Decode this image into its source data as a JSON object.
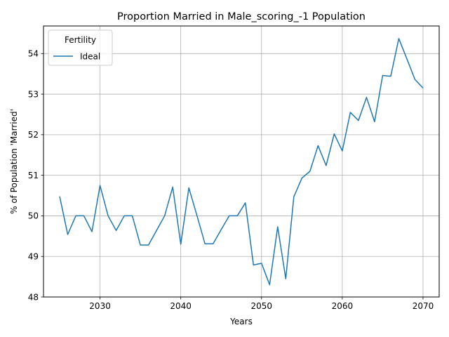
{
  "chart_data": {
    "type": "line",
    "title": "Proportion Married in Male_scoring_-1 Population",
    "xlabel": "Years",
    "ylabel": "% of Population 'Married'",
    "xlim": [
      2023,
      2072
    ],
    "ylim": [
      48,
      54.68
    ],
    "xticks": [
      2030,
      2040,
      2050,
      2060,
      2070
    ],
    "yticks": [
      48,
      49,
      50,
      51,
      52,
      53,
      54
    ],
    "grid": true,
    "legend": {
      "title": "Fertility",
      "placement": "upper-left"
    },
    "series": [
      {
        "name": "Ideal",
        "color": "#1f77b4",
        "x": [
          2025,
          2026,
          2027,
          2028,
          2029,
          2030,
          2031,
          2032,
          2033,
          2034,
          2035,
          2036,
          2037,
          2038,
          2039,
          2040,
          2041,
          2042,
          2043,
          2044,
          2045,
          2046,
          2047,
          2048,
          2049,
          2050,
          2051,
          2052,
          2053,
          2054,
          2055,
          2056,
          2057,
          2058,
          2059,
          2060,
          2061,
          2062,
          2063,
          2064,
          2065,
          2066,
          2067,
          2068,
          2069,
          2070
        ],
        "y": [
          50.48,
          49.54,
          50.0,
          50.0,
          49.61,
          50.75,
          50.0,
          49.64,
          50.0,
          50.0,
          49.28,
          49.28,
          49.64,
          50.0,
          50.71,
          49.3,
          50.69,
          50.01,
          49.31,
          49.31,
          49.66,
          50.0,
          50.0,
          50.32,
          48.79,
          48.83,
          48.3,
          49.73,
          48.45,
          50.47,
          50.93,
          51.1,
          51.73,
          51.24,
          52.02,
          51.6,
          52.55,
          52.35,
          52.92,
          52.32,
          53.46,
          53.44,
          54.37,
          53.87,
          53.36,
          53.15
        ]
      }
    ]
  }
}
